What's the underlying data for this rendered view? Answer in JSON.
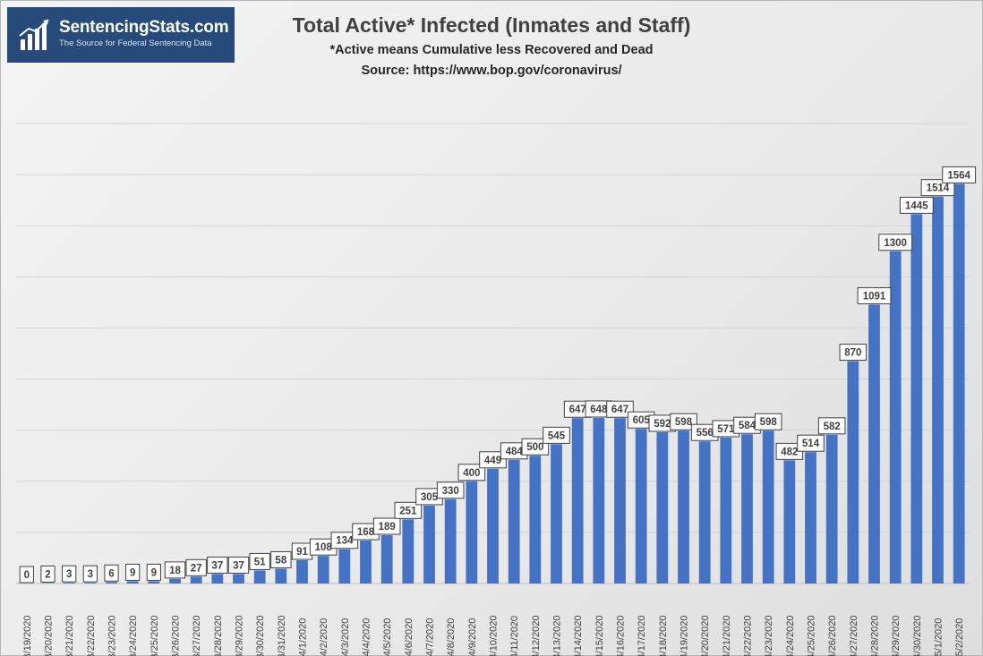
{
  "brand": {
    "name": "SentencingStats.com",
    "tagline": "The Source for Federal Sentencing Data"
  },
  "colors": {
    "bar": "#4472c4",
    "logo_background": "#264a7a"
  },
  "chart_data": {
    "type": "bar",
    "title": "Total Active* Infected (Inmates and Staff)",
    "subtitle": "*Active means Cumulative less Recovered and Dead",
    "source": "Source: https://www.bop.gov/coronavirus/",
    "xlabel": "",
    "ylabel": "",
    "ylim": [
      0,
      1800
    ],
    "grid": true,
    "legend": "none",
    "categories": [
      "3/19/2020",
      "3/20/2020",
      "3/21/2020",
      "3/22/2020",
      "3/23/2020",
      "3/24/2020",
      "3/25/2020",
      "3/26/2020",
      "3/27/2020",
      "3/28/2020",
      "3/29/2020",
      "3/30/2020",
      "3/31/2020",
      "4/1/2020",
      "4/2/2020",
      "4/3/2020",
      "4/4/2020",
      "4/5/2020",
      "4/6/2020",
      "4/7/2020",
      "4/8/2020",
      "4/9/2020",
      "4/10/2020",
      "4/11/2020",
      "4/12/2020",
      "4/13/2020",
      "4/14/2020",
      "4/15/2020",
      "4/16/2020",
      "4/17/2020",
      "4/18/2020",
      "4/19/2020",
      "4/20/2020",
      "4/21/2020",
      "4/22/2020",
      "4/23/2020",
      "4/24/2020",
      "4/25/2020",
      "4/26/2020",
      "4/27/2020",
      "4/28/2020",
      "4/29/2020",
      "4/30/2020",
      "5/1/2020",
      "5/2/2020"
    ],
    "values": [
      0,
      2,
      3,
      3,
      6,
      9,
      9,
      18,
      27,
      37,
      37,
      51,
      58,
      91,
      108,
      134,
      168,
      189,
      251,
      305,
      330,
      400,
      449,
      484,
      500,
      545,
      647,
      648,
      647,
      605,
      592,
      598,
      556,
      571,
      584,
      598,
      482,
      514,
      582,
      870,
      1091,
      1300,
      1445,
      1514,
      1564
    ]
  }
}
